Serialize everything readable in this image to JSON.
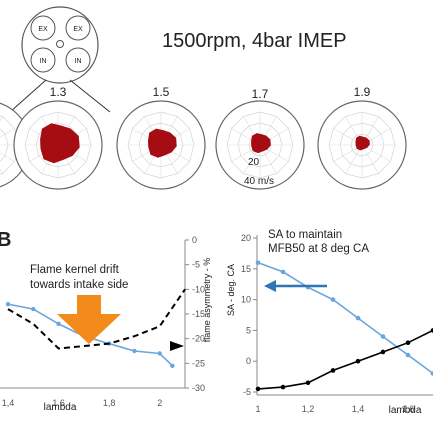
{
  "header": {
    "title": "1500rpm, 4bar IMEP",
    "cylinder_labels": [
      "EX",
      "EX",
      "IN",
      "IN"
    ]
  },
  "polar_panels": {
    "lambda_labels": [
      "1.3",
      "1.5",
      "1.7",
      "1.9"
    ],
    "radial_labels": [
      "20",
      "40 m/s"
    ],
    "kernel_color": "#a50d12"
  },
  "colors": {
    "lambda_series": "#6aa6dd",
    "asymmetry_series": "#000000",
    "drift_arrow": "#f28a1c",
    "sa_arrow": "#2e75b6"
  },
  "left_panel": {
    "panel_letter": "B",
    "annotation_line1": "Flame kernel drift",
    "annotation_line2": "towards intake side"
  },
  "right_panel": {
    "annotation_line1": "SA to maintain",
    "annotation_line2": "MFB50 at 8 deg CA"
  },
  "chart_data": [
    {
      "type": "line",
      "xlabel": "lambda",
      "x_ticks": [
        "1,4",
        "1,6",
        "1,8",
        "2"
      ],
      "xlim": [
        1.4,
        2.1
      ],
      "y2label": "flame asymmetry - %",
      "y2_ticks": [
        "0",
        "-5",
        "-10",
        "-15",
        "-20",
        "-25",
        "-30"
      ],
      "y2lim": [
        -30,
        0
      ],
      "series": [
        {
          "style": "solid",
          "color": "#6aa6dd",
          "x": [
            1.4,
            1.5,
            1.6,
            1.7,
            1.8,
            1.9,
            2.0,
            2.05
          ],
          "y": [
            -13.0,
            -14.0,
            -17.0,
            -19.5,
            -21.0,
            -22.5,
            -23.0,
            -25.5
          ]
        },
        {
          "style": "dashed",
          "color": "#000000",
          "x": [
            1.4,
            1.5,
            1.6,
            1.8,
            1.9,
            2.0,
            2.1
          ],
          "y": [
            -14.0,
            -17.0,
            -22.0,
            -21.0,
            -19.5,
            -17.5,
            -10.0
          ]
        }
      ]
    },
    {
      "type": "line",
      "xlabel": "lambda",
      "ylabel": "SA - deg. CA",
      "x_ticks": [
        "1",
        "1,2",
        "1,4",
        "1,6"
      ],
      "xlim": [
        1.0,
        1.7
      ],
      "y_ticks": [
        "20",
        "15",
        "10",
        "5",
        "0",
        "-5"
      ],
      "ylim": [
        -5,
        20
      ],
      "series": [
        {
          "color": "#6aa6dd",
          "x": [
            1.0,
            1.1,
            1.2,
            1.3,
            1.4,
            1.5,
            1.6,
            1.7
          ],
          "y": [
            16.0,
            14.5,
            12.0,
            10.0,
            7.0,
            4.0,
            1.0,
            -2.0
          ]
        },
        {
          "color": "#000000",
          "x": [
            1.0,
            1.1,
            1.2,
            1.3,
            1.4,
            1.5,
            1.6,
            1.7
          ],
          "y": [
            -4.5,
            -4.2,
            -3.5,
            -1.5,
            0.0,
            1.5,
            3.0,
            5.0
          ]
        }
      ]
    }
  ]
}
